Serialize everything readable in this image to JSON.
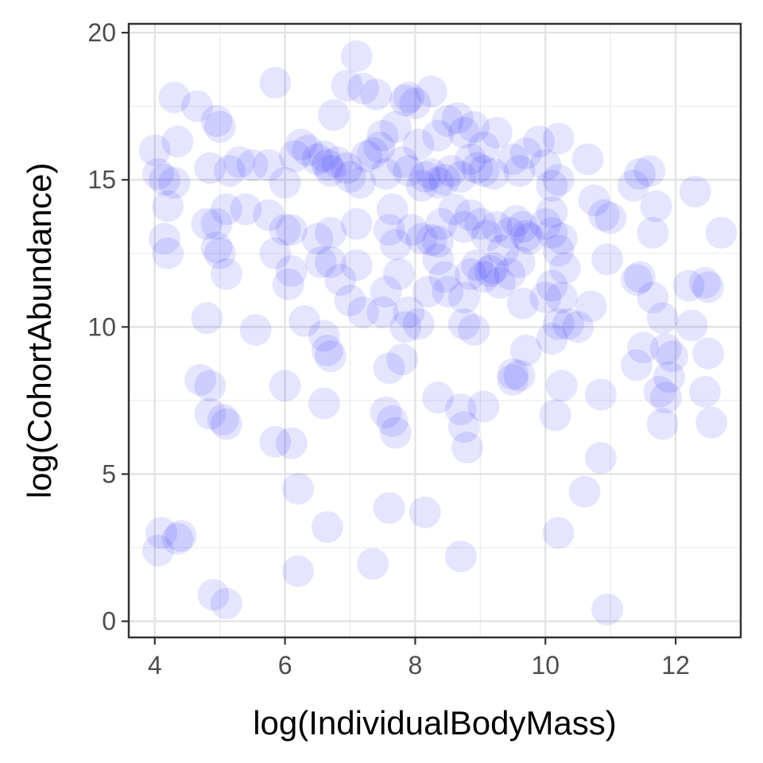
{
  "chart_data": {
    "type": "scatter",
    "xlabel": "log(IndividualBodyMass)",
    "ylabel": "log(CohortAbundance)",
    "xlim": [
      3.6,
      13.0
    ],
    "ylim": [
      -0.55,
      20.3
    ],
    "x_ticks": [
      4,
      6,
      8,
      10,
      12
    ],
    "x_tick_labels": [
      "4",
      "6",
      "8",
      "10",
      "12"
    ],
    "y_ticks": [
      0,
      5,
      10,
      15,
      20
    ],
    "y_tick_labels": [
      "0",
      "5",
      "10",
      "15",
      "20"
    ],
    "grid": true,
    "legend": "none",
    "point_color": "#0000ff",
    "point_alpha": 0.1,
    "points": [
      [
        4.05,
        2.4
      ],
      [
        4.1,
        3.0
      ],
      [
        4.35,
        2.8
      ],
      [
        4.4,
        2.9
      ],
      [
        4.9,
        0.9
      ],
      [
        5.1,
        0.6
      ],
      [
        6.2,
        1.7
      ],
      [
        6.65,
        3.2
      ],
      [
        7.35,
        1.95
      ],
      [
        7.6,
        3.85
      ],
      [
        8.15,
        3.7
      ],
      [
        8.7,
        2.2
      ],
      [
        10.2,
        3.0
      ],
      [
        10.95,
        0.4
      ],
      [
        6.2,
        4.5
      ],
      [
        10.6,
        4.4
      ],
      [
        10.85,
        5.55
      ],
      [
        5.85,
        6.1
      ],
      [
        6.1,
        6.05
      ],
      [
        4.85,
        7.05
      ],
      [
        4.85,
        8.0
      ],
      [
        4.7,
        8.2
      ],
      [
        5.05,
        6.85
      ],
      [
        5.1,
        6.7
      ],
      [
        6.0,
        8.0
      ],
      [
        6.6,
        7.4
      ],
      [
        7.55,
        7.1
      ],
      [
        7.65,
        6.8
      ],
      [
        7.7,
        6.4
      ],
      [
        8.35,
        7.6
      ],
      [
        8.7,
        7.2
      ],
      [
        8.75,
        6.6
      ],
      [
        8.8,
        5.9
      ],
      [
        9.05,
        7.3
      ],
      [
        9.5,
        8.2
      ],
      [
        9.6,
        8.35
      ],
      [
        10.15,
        7.0
      ],
      [
        10.25,
        8.0
      ],
      [
        10.85,
        7.7
      ],
      [
        11.75,
        7.8
      ],
      [
        11.8,
        6.7
      ],
      [
        11.85,
        7.6
      ],
      [
        11.9,
        8.3
      ],
      [
        12.45,
        7.8
      ],
      [
        12.55,
        6.75
      ],
      [
        4.8,
        10.3
      ],
      [
        5.55,
        9.9
      ],
      [
        6.3,
        10.2
      ],
      [
        6.6,
        9.7
      ],
      [
        6.7,
        9.0
      ],
      [
        6.65,
        9.2
      ],
      [
        7.0,
        10.9
      ],
      [
        7.5,
        10.5
      ],
      [
        7.6,
        8.6
      ],
      [
        7.8,
        8.9
      ],
      [
        7.85,
        10.0
      ],
      [
        8.05,
        10.1
      ],
      [
        8.75,
        10.1
      ],
      [
        8.9,
        9.9
      ],
      [
        9.7,
        9.2
      ],
      [
        9.5,
        8.4
      ],
      [
        10.1,
        9.6
      ],
      [
        10.2,
        10.1
      ],
      [
        10.35,
        10.1
      ],
      [
        10.5,
        10.0
      ],
      [
        10.7,
        10.7
      ],
      [
        11.4,
        8.7
      ],
      [
        11.5,
        9.3
      ],
      [
        11.95,
        9.0
      ],
      [
        11.8,
        10.3
      ],
      [
        11.85,
        9.25
      ],
      [
        12.25,
        10.05
      ],
      [
        12.5,
        9.1
      ],
      [
        4.2,
        12.5
      ],
      [
        4.95,
        12.7
      ],
      [
        5.0,
        12.5
      ],
      [
        5.1,
        11.8
      ],
      [
        5.85,
        12.5
      ],
      [
        6.05,
        11.45
      ],
      [
        6.1,
        11.9
      ],
      [
        6.55,
        12.2
      ],
      [
        6.7,
        12.2
      ],
      [
        6.85,
        11.6
      ],
      [
        7.1,
        12.1
      ],
      [
        7.2,
        10.5
      ],
      [
        7.55,
        11.2
      ],
      [
        7.75,
        11.8
      ],
      [
        7.9,
        10.5
      ],
      [
        8.2,
        11.2
      ],
      [
        8.35,
        12.3
      ],
      [
        8.45,
        11.7
      ],
      [
        8.5,
        11.2
      ],
      [
        8.75,
        11.0
      ],
      [
        8.85,
        11.8
      ],
      [
        8.95,
        12.1
      ],
      [
        9.05,
        11.7
      ],
      [
        9.15,
        11.9
      ],
      [
        9.2,
        12.0
      ],
      [
        9.3,
        11.5
      ],
      [
        9.35,
        12.6
      ],
      [
        9.45,
        11.8
      ],
      [
        9.6,
        12.2
      ],
      [
        9.65,
        10.8
      ],
      [
        10.0,
        11.0
      ],
      [
        10.1,
        11.4
      ],
      [
        10.25,
        11.0
      ],
      [
        10.3,
        12.0
      ],
      [
        10.95,
        12.3
      ],
      [
        11.4,
        11.6
      ],
      [
        11.45,
        11.7
      ],
      [
        11.65,
        11.0
      ],
      [
        12.2,
        11.4
      ],
      [
        12.45,
        11.5
      ],
      [
        12.5,
        11.35
      ],
      [
        4.15,
        13.0
      ],
      [
        4.2,
        14.1
      ],
      [
        4.8,
        13.5
      ],
      [
        4.95,
        13.5
      ],
      [
        5.1,
        14.0
      ],
      [
        5.4,
        14.0
      ],
      [
        5.75,
        13.8
      ],
      [
        6.0,
        13.3
      ],
      [
        6.1,
        13.3
      ],
      [
        6.5,
        13.0
      ],
      [
        6.7,
        13.2
      ],
      [
        7.1,
        13.5
      ],
      [
        7.6,
        13.3
      ],
      [
        7.7,
        12.8
      ],
      [
        7.95,
        13.3
      ],
      [
        8.1,
        13.0
      ],
      [
        8.25,
        12.95
      ],
      [
        8.35,
        12.9
      ],
      [
        8.4,
        13.5
      ],
      [
        8.6,
        14.0
      ],
      [
        8.75,
        13.4
      ],
      [
        8.85,
        13.8
      ],
      [
        9.0,
        13.5
      ],
      [
        9.1,
        13.1
      ],
      [
        9.25,
        13.4
      ],
      [
        9.45,
        13.2
      ],
      [
        9.55,
        13.6
      ],
      [
        9.65,
        13.4
      ],
      [
        9.7,
        13.1
      ],
      [
        9.75,
        13.0
      ],
      [
        10.0,
        13.5
      ],
      [
        10.1,
        13.2
      ],
      [
        10.2,
        12.6
      ],
      [
        10.25,
        13.0
      ],
      [
        10.75,
        14.3
      ],
      [
        10.9,
        13.8
      ],
      [
        11.0,
        13.7
      ],
      [
        11.65,
        13.2
      ],
      [
        11.7,
        14.1
      ],
      [
        12.7,
        13.2
      ],
      [
        4.05,
        15.2
      ],
      [
        4.15,
        15.0
      ],
      [
        4.3,
        14.9
      ],
      [
        4.85,
        15.4
      ],
      [
        5.15,
        15.3
      ],
      [
        5.3,
        15.6
      ],
      [
        5.5,
        15.5
      ],
      [
        5.75,
        15.5
      ],
      [
        6.0,
        14.9
      ],
      [
        6.15,
        15.8
      ],
      [
        6.35,
        16.0
      ],
      [
        6.5,
        15.7
      ],
      [
        6.6,
        15.8
      ],
      [
        6.65,
        15.5
      ],
      [
        6.7,
        15.3
      ],
      [
        6.8,
        15.6
      ],
      [
        6.95,
        15.4
      ],
      [
        7.0,
        15.1
      ],
      [
        7.15,
        14.9
      ],
      [
        7.25,
        15.8
      ],
      [
        7.35,
        15.9
      ],
      [
        7.45,
        16.1
      ],
      [
        7.55,
        15.2
      ],
      [
        7.65,
        14.0
      ],
      [
        7.8,
        15.6
      ],
      [
        7.9,
        15.3
      ],
      [
        8.1,
        14.8
      ],
      [
        8.15,
        15.1
      ],
      [
        8.25,
        15.2
      ],
      [
        8.35,
        14.9
      ],
      [
        8.45,
        15.0
      ],
      [
        8.55,
        15.3
      ],
      [
        8.7,
        15.1
      ],
      [
        8.85,
        15.7
      ],
      [
        8.95,
        15.4
      ],
      [
        9.05,
        15.3
      ],
      [
        9.2,
        15.2
      ],
      [
        9.5,
        15.7
      ],
      [
        9.6,
        15.3
      ],
      [
        9.7,
        15.9
      ],
      [
        10.0,
        15.5
      ],
      [
        10.1,
        14.8
      ],
      [
        10.2,
        15.0
      ],
      [
        10.1,
        13.9
      ],
      [
        11.35,
        14.8
      ],
      [
        11.45,
        15.2
      ],
      [
        11.6,
        15.3
      ],
      [
        12.3,
        14.6
      ],
      [
        4.0,
        16.0
      ],
      [
        4.35,
        16.3
      ],
      [
        4.3,
        17.8
      ],
      [
        4.65,
        17.5
      ],
      [
        4.95,
        17.0
      ],
      [
        5.0,
        16.8
      ],
      [
        5.85,
        18.3
      ],
      [
        6.25,
        16.2
      ],
      [
        6.75,
        17.2
      ],
      [
        6.95,
        18.2
      ],
      [
        7.1,
        19.2
      ],
      [
        7.2,
        18.1
      ],
      [
        7.4,
        17.9
      ],
      [
        7.5,
        16.5
      ],
      [
        7.7,
        16.8
      ],
      [
        7.85,
        17.7
      ],
      [
        7.9,
        17.8
      ],
      [
        8.0,
        17.6
      ],
      [
        8.05,
        16.2
      ],
      [
        8.25,
        18.0
      ],
      [
        8.35,
        16.5
      ],
      [
        8.5,
        17.0
      ],
      [
        8.65,
        17.1
      ],
      [
        8.75,
        16.6
      ],
      [
        8.9,
        16.8
      ],
      [
        9.05,
        16.1
      ],
      [
        9.25,
        16.6
      ],
      [
        9.9,
        16.3
      ],
      [
        10.2,
        16.4
      ],
      [
        10.65,
        15.7
      ]
    ]
  }
}
